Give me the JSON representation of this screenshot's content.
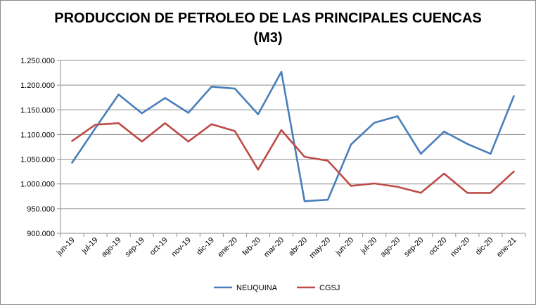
{
  "chart_data": {
    "type": "line",
    "title": "PRODUCCION DE PETROLEO DE LAS PRINCIPALES CUENCAS",
    "subtitle": "(M3)",
    "xlabel": "",
    "ylabel": "",
    "ylim": [
      900000,
      1250000
    ],
    "yticks": [
      900000,
      950000,
      1000000,
      1050000,
      1100000,
      1150000,
      1200000,
      1250000
    ],
    "ytick_labels": [
      "900.000",
      "950.000",
      "1.000.000",
      "1.050.000",
      "1.100.000",
      "1.150.000",
      "1.200.000",
      "1.250.000"
    ],
    "grid": true,
    "legend": "bottom",
    "categories": [
      "jun-19",
      "jul-19",
      "ago-19",
      "sep-19",
      "oct-19",
      "nov-19",
      "dic-19",
      "ene-20",
      "feb-20",
      "mar-20",
      "abr-20",
      "may-20",
      "jun-20",
      "jul-20",
      "ago-20",
      "sep-20",
      "oct-20",
      "nov-20",
      "dic-20",
      "ene-21"
    ],
    "series": [
      {
        "name": "NEUQUINA",
        "color": "#4a7ebb",
        "values": [
          1043000,
          1113000,
          1181000,
          1143000,
          1174000,
          1144000,
          1197000,
          1193000,
          1141000,
          1227000,
          965000,
          968000,
          1080000,
          1124000,
          1137000,
          1061000,
          1106000,
          1081000,
          1061000,
          1178000
        ]
      },
      {
        "name": "CGSJ",
        "color": "#be4b48",
        "values": [
          1087000,
          1120000,
          1123000,
          1086000,
          1123000,
          1086000,
          1121000,
          1107000,
          1029000,
          1109000,
          1055000,
          1047000,
          996000,
          1001000,
          994000,
          982000,
          1021000,
          982000,
          982000,
          1025000
        ]
      }
    ]
  }
}
